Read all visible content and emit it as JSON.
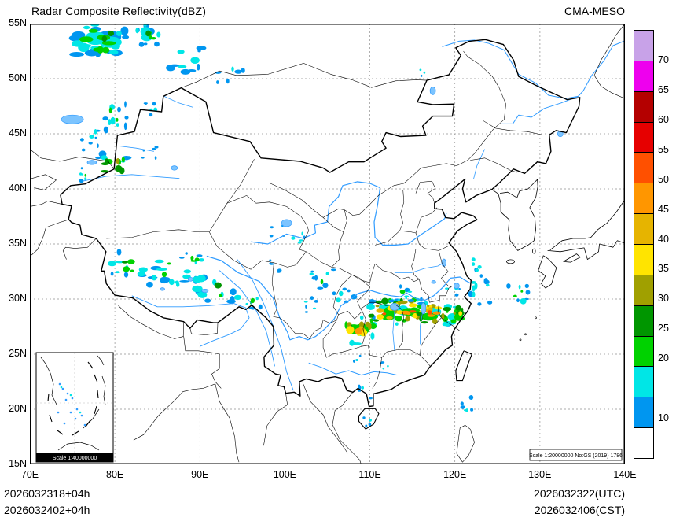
{
  "header": {
    "title": "Radar Composite Reflectivity(dBZ)",
    "model": "CMA-MESO"
  },
  "footer": {
    "init_utc": "2026032318+04h",
    "init_cst": "2026032402+04h",
    "valid_utc": "2026032322(UTC)",
    "valid_cst": "2026032406(CST)"
  },
  "axes": {
    "lat_labels": [
      {
        "text": "55N",
        "value": 55
      },
      {
        "text": "50N",
        "value": 50
      },
      {
        "text": "45N",
        "value": 45
      },
      {
        "text": "40N",
        "value": 40
      },
      {
        "text": "35N",
        "value": 35
      },
      {
        "text": "30N",
        "value": 30
      },
      {
        "text": "25N",
        "value": 25
      },
      {
        "text": "20N",
        "value": 20
      },
      {
        "text": "15N",
        "value": 15
      }
    ],
    "lon_labels": [
      {
        "text": "70E",
        "value": 70
      },
      {
        "text": "80E",
        "value": 80
      },
      {
        "text": "90E",
        "value": 90
      },
      {
        "text": "100E",
        "value": 100
      },
      {
        "text": "110E",
        "value": 110
      },
      {
        "text": "120E",
        "value": 120
      },
      {
        "text": "130E",
        "value": 130
      },
      {
        "text": "140E",
        "value": 140
      }
    ],
    "lat_gridlines": [
      50,
      45,
      40,
      35,
      30,
      25,
      20
    ],
    "lon_gridlines": [
      80,
      90,
      100,
      110,
      120,
      130
    ],
    "lon_range": [
      70,
      140
    ],
    "lat_range": [
      15,
      55
    ]
  },
  "colorbar": {
    "cells_top_to_bottom": [
      "#C8A2E8",
      "#EE00EE",
      "#B40000",
      "#E60000",
      "#FF5000",
      "#FF9600",
      "#E6B400",
      "#FFE400",
      "#A0A000",
      "#009600",
      "#00D200",
      "#00E6E6",
      "#0096F0",
      "#FFFFFF"
    ],
    "labels": [
      {
        "text": "70",
        "boundary": 1
      },
      {
        "text": "65",
        "boundary": 2
      },
      {
        "text": "60",
        "boundary": 3
      },
      {
        "text": "55",
        "boundary": 4
      },
      {
        "text": "50",
        "boundary": 5
      },
      {
        "text": "45",
        "boundary": 6
      },
      {
        "text": "40",
        "boundary": 7
      },
      {
        "text": "35",
        "boundary": 8
      },
      {
        "text": "30",
        "boundary": 9
      },
      {
        "text": "25",
        "boundary": 10
      },
      {
        "text": "20",
        "boundary": 11
      },
      {
        "text": "10",
        "boundary": 13
      }
    ]
  },
  "scales": {
    "inset": "Scale 1:40000000",
    "main": "Scale 1:20000000 No:GS (2019) 1786"
  },
  "echo_clusters": [
    {
      "lon": 78.4,
      "lat": 53.6,
      "w": 3.2,
      "h": 1.5,
      "max": 4,
      "n": 30,
      "base": 2
    },
    {
      "lon": 83.8,
      "lat": 54.0,
      "w": 1.4,
      "h": 1.0,
      "max": 4,
      "n": 14,
      "base": 2
    },
    {
      "lon": 88.5,
      "lat": 51.6,
      "w": 2.2,
      "h": 1.2,
      "max": 2,
      "n": 10
    },
    {
      "lon": 93.5,
      "lat": 50.3,
      "w": 1.8,
      "h": 0.9,
      "max": 2,
      "n": 6
    },
    {
      "lon": 80.0,
      "lat": 46.6,
      "w": 1.4,
      "h": 1.3,
      "max": 3,
      "n": 12
    },
    {
      "lon": 84.6,
      "lat": 47.4,
      "w": 1.0,
      "h": 0.7,
      "max": 3,
      "n": 6
    },
    {
      "lon": 77.4,
      "lat": 44.4,
      "w": 1.4,
      "h": 0.9,
      "max": 2,
      "n": 8
    },
    {
      "lon": 79.8,
      "lat": 42.1,
      "w": 1.9,
      "h": 1.1,
      "max": 6,
      "n": 16
    },
    {
      "lon": 76.4,
      "lat": 41.4,
      "w": 1.0,
      "h": 0.7,
      "max": 3,
      "n": 6
    },
    {
      "lon": 84.0,
      "lat": 43.4,
      "w": 0.9,
      "h": 0.6,
      "max": 2,
      "n": 5
    },
    {
      "lon": 81.6,
      "lat": 33.2,
      "w": 2.0,
      "h": 1.1,
      "max": 4,
      "n": 14
    },
    {
      "lon": 86.4,
      "lat": 32.4,
      "w": 2.4,
      "h": 1.1,
      "max": 4,
      "n": 16
    },
    {
      "lon": 89.2,
      "lat": 33.4,
      "w": 1.4,
      "h": 0.8,
      "max": 3,
      "n": 8
    },
    {
      "lon": 91.8,
      "lat": 31.0,
      "w": 2.4,
      "h": 1.3,
      "max": 4,
      "n": 16
    },
    {
      "lon": 95.8,
      "lat": 29.9,
      "w": 1.6,
      "h": 0.9,
      "max": 3,
      "n": 9
    },
    {
      "lon": 98.8,
      "lat": 33.0,
      "w": 1.2,
      "h": 0.7,
      "max": 2,
      "n": 5
    },
    {
      "lon": 99.0,
      "lat": 36.2,
      "w": 0.9,
      "h": 0.5,
      "max": 2,
      "n": 4
    },
    {
      "lon": 101.6,
      "lat": 35.4,
      "w": 0.9,
      "h": 0.6,
      "max": 3,
      "n": 5
    },
    {
      "lon": 104.4,
      "lat": 31.8,
      "w": 1.4,
      "h": 0.9,
      "max": 3,
      "n": 9
    },
    {
      "lon": 103.0,
      "lat": 29.5,
      "w": 1.0,
      "h": 0.7,
      "max": 2,
      "n": 6
    },
    {
      "lon": 107.0,
      "lat": 30.3,
      "w": 1.4,
      "h": 0.8,
      "max": 3,
      "n": 7
    },
    {
      "lon": 108.6,
      "lat": 27.2,
      "w": 1.9,
      "h": 1.3,
      "max": 8,
      "n": 20,
      "base": 3
    },
    {
      "lon": 111.8,
      "lat": 28.8,
      "w": 1.9,
      "h": 1.1,
      "max": 9,
      "n": 24,
      "base": 3
    },
    {
      "lon": 114.6,
      "lat": 29.0,
      "w": 2.0,
      "h": 1.0,
      "max": 11,
      "n": 30,
      "base": 3
    },
    {
      "lon": 117.4,
      "lat": 28.7,
      "w": 1.9,
      "h": 1.0,
      "max": 10,
      "n": 26,
      "base": 3
    },
    {
      "lon": 120.3,
      "lat": 28.6,
      "w": 1.4,
      "h": 0.9,
      "max": 6,
      "n": 14,
      "base": 3
    },
    {
      "lon": 113.6,
      "lat": 30.5,
      "w": 1.4,
      "h": 0.7,
      "max": 3,
      "n": 8
    },
    {
      "lon": 119.6,
      "lat": 30.8,
      "w": 1.0,
      "h": 0.6,
      "max": 2,
      "n": 5
    },
    {
      "lon": 122.9,
      "lat": 30.6,
      "w": 1.3,
      "h": 1.2,
      "max": 3,
      "n": 10
    },
    {
      "lon": 122.4,
      "lat": 33.0,
      "w": 0.9,
      "h": 0.9,
      "max": 2,
      "n": 6
    },
    {
      "lon": 127.2,
      "lat": 30.4,
      "w": 1.4,
      "h": 1.0,
      "max": 3,
      "n": 9
    },
    {
      "lon": 109.6,
      "lat": 21.6,
      "w": 0.9,
      "h": 0.7,
      "max": 2,
      "n": 5
    },
    {
      "lon": 112.0,
      "lat": 23.8,
      "w": 0.8,
      "h": 0.5,
      "max": 2,
      "n": 4
    },
    {
      "lon": 108.2,
      "lat": 24.8,
      "w": 0.7,
      "h": 0.5,
      "max": 2,
      "n": 4
    },
    {
      "lon": 109.9,
      "lat": 18.9,
      "w": 0.8,
      "h": 0.5,
      "max": 2,
      "n": 4
    },
    {
      "lon": 121.2,
      "lat": 20.3,
      "w": 1.0,
      "h": 0.8,
      "max": 2,
      "n": 6
    },
    {
      "lon": 116.1,
      "lat": 50.6,
      "w": 0.6,
      "h": 0.4,
      "max": 2,
      "n": 3
    }
  ]
}
